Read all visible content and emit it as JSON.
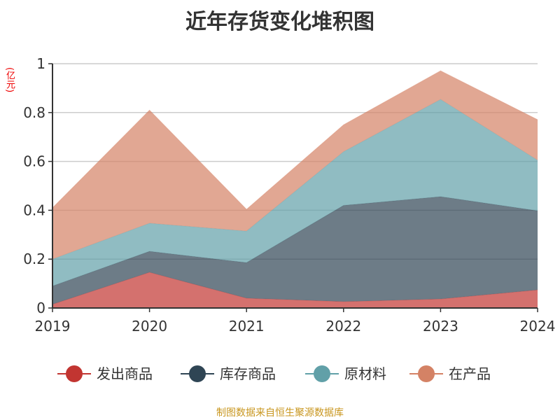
{
  "chart_data": {
    "type": "area",
    "stacked": true,
    "title": "近年存货变化堆积图",
    "ylabel": "(亿元)",
    "xlabel": "",
    "categories": [
      "2019",
      "2020",
      "2021",
      "2022",
      "2023",
      "2024"
    ],
    "ylim": [
      0,
      1
    ],
    "yticks": [
      "0",
      "0.2",
      "0.4",
      "0.6",
      "0.8",
      "1"
    ],
    "grid": true,
    "legend_position": "bottom",
    "series": [
      {
        "name": "发出商品",
        "color": "#c23531",
        "values": [
          0.015,
          0.146,
          0.04,
          0.026,
          0.037,
          0.074
        ]
      },
      {
        "name": "库存商品",
        "color": "#2f4554",
        "values": [
          0.075,
          0.086,
          0.146,
          0.394,
          0.419,
          0.324
        ]
      },
      {
        "name": "原材料",
        "color": "#61a0a8",
        "values": [
          0.11,
          0.115,
          0.129,
          0.22,
          0.398,
          0.207
        ]
      },
      {
        "name": "在产品",
        "color": "#d48265",
        "values": [
          0.21,
          0.463,
          0.089,
          0.11,
          0.117,
          0.166
        ]
      }
    ]
  },
  "source": "制图数据来自恒生聚源数据库"
}
